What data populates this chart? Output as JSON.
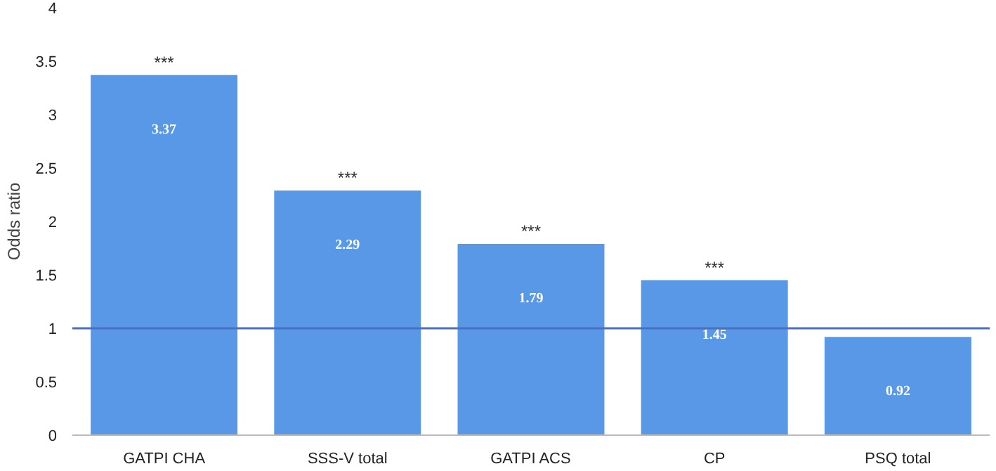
{
  "chart_data": {
    "type": "bar",
    "ylabel": "Odds ratio",
    "categories": [
      "GATPI CHA",
      "SSS-V total",
      "GATPI ACS",
      "CP",
      "PSQ total"
    ],
    "values": [
      3.37,
      2.29,
      1.79,
      1.45,
      0.92
    ],
    "color": "#5898e6",
    "data_labels": true,
    "ylim": [
      0,
      4
    ],
    "yticks": [
      0,
      0.5,
      1,
      1.5,
      2,
      2.5,
      3,
      3.5,
      4
    ],
    "grid": false,
    "ref_lines": [
      {
        "axis": "y",
        "value": 1,
        "color": "#4a70c4"
      }
    ],
    "annotations": [
      {
        "text": "***",
        "x": "GATPI CHA",
        "y": 3.37
      },
      {
        "text": "***",
        "x": "SSS-V total",
        "y": 2.29
      },
      {
        "text": "***",
        "x": "GATPI ACS",
        "y": 1.79
      },
      {
        "text": "***",
        "x": "CP",
        "y": 1.45
      }
    ]
  }
}
